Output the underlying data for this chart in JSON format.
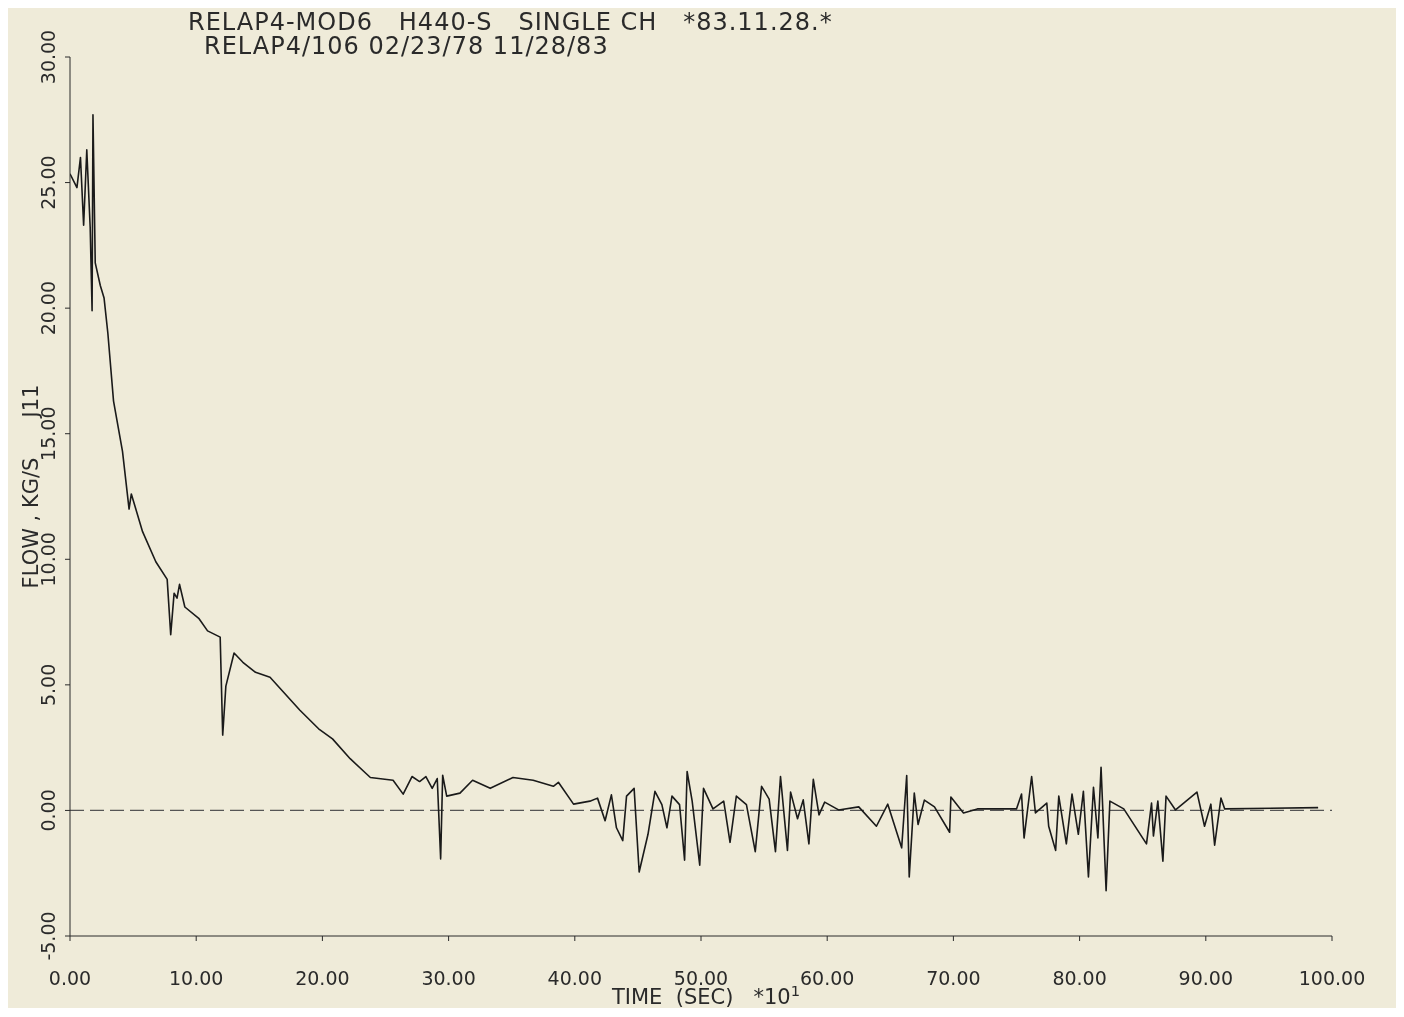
{
  "chart_data": {
    "type": "line",
    "title": "RELAP4-MOD6   H440-S   SINGLE CH   *83.11.28.*",
    "subtitle": "RELAP4/106 02/23/78 11/28/83",
    "xlabel": "TIME  (SEC)   *10$^{1}$",
    "ylabel": "FLOW , KG/S      J11",
    "xlim": [
      0,
      100
    ],
    "ylim": [
      -5,
      30
    ],
    "xticks": [
      {
        "value": 0,
        "label": "0.00"
      },
      {
        "value": 10,
        "label": "10.00"
      },
      {
        "value": 20,
        "label": "20.00"
      },
      {
        "value": 30,
        "label": "30.00"
      },
      {
        "value": 40,
        "label": "40.00"
      },
      {
        "value": 50,
        "label": "50.00"
      },
      {
        "value": 60,
        "label": "60.00"
      },
      {
        "value": 70,
        "label": "70.00"
      },
      {
        "value": 80,
        "label": "80.00"
      },
      {
        "value": 90,
        "label": "90.00"
      },
      {
        "value": 100,
        "label": "100.00"
      }
    ],
    "yticks": [
      {
        "value": -5,
        "label": "-5.00"
      },
      {
        "value": 0,
        "label": "0.00"
      },
      {
        "value": 5,
        "label": "5.00"
      },
      {
        "value": 10,
        "label": "10.00"
      },
      {
        "value": 15,
        "label": "15.00"
      },
      {
        "value": 20,
        "label": "20.00"
      },
      {
        "value": 25,
        "label": "25.00"
      },
      {
        "value": 30,
        "label": "30.00"
      }
    ],
    "ref_lines": [
      {
        "axis": "y",
        "value": 0,
        "color": "#555555",
        "line_style": "dashed"
      }
    ],
    "series": [
      {
        "color": "#1a1a1a",
        "x": [
          0,
          0.55,
          0.83,
          1.08,
          1.33,
          1.6,
          1.75,
          1.82,
          2.0,
          2.4,
          2.7,
          3.0,
          3.45,
          4.16,
          4.68,
          4.86,
          5.75,
          6.8,
          7.7,
          7.98,
          8.25,
          8.48,
          8.68,
          9.1,
          10.2,
          10.9,
          11.9,
          12.1,
          12.35,
          13.0,
          13.7,
          14.7,
          15.85,
          18.2,
          19.7,
          20.8,
          22.2,
          23.8,
          25.6,
          26.4,
          27.1,
          27.7,
          28.2,
          28.7,
          29.1,
          29.37,
          29.53,
          29.85,
          30.9,
          31.9,
          33.3,
          35.1,
          36.7,
          38.3,
          38.7,
          39.9,
          41.2,
          41.8,
          42.4,
          42.9,
          43.3,
          43.8,
          44.1,
          44.7,
          45.1,
          45.8,
          46.35,
          46.9,
          47.3,
          47.7,
          48.3,
          48.7,
          48.9,
          49.3,
          49.9,
          50.2,
          50.95,
          51.8,
          52.3,
          52.8,
          53.6,
          54.3,
          54.8,
          55.4,
          55.9,
          56.3,
          56.85,
          57.1,
          57.65,
          58.1,
          58.55,
          58.9,
          59.35,
          59.8,
          60.9,
          62.5,
          63.9,
          64.8,
          65.9,
          66.3,
          66.5,
          66.9,
          67.2,
          67.7,
          68.5,
          69.7,
          69.8,
          70.8,
          71.9,
          75.0,
          75.4,
          75.6,
          76.2,
          76.5,
          77.4,
          77.55,
          78.1,
          78.35,
          78.95,
          79.4,
          79.9,
          80.3,
          80.7,
          81.1,
          81.45,
          81.7,
          82.1,
          82.4,
          83.5,
          85.3,
          85.7,
          85.85,
          86.2,
          86.6,
          86.85,
          87.6,
          89.3,
          89.9,
          90.4,
          90.7,
          91.2,
          91.5,
          98.9
        ],
        "values": [
          25.35,
          24.8,
          26.0,
          23.3,
          26.3,
          23.2,
          19.9,
          27.7,
          21.8,
          20.9,
          20.4,
          19.0,
          16.3,
          14.3,
          12.0,
          12.6,
          11.1,
          9.9,
          9.2,
          7.0,
          8.65,
          8.45,
          9.0,
          8.1,
          7.65,
          7.15,
          6.9,
          3.0,
          4.95,
          6.27,
          5.9,
          5.5,
          5.3,
          4.0,
          3.25,
          2.85,
          2.06,
          1.31,
          1.2,
          0.65,
          1.35,
          1.15,
          1.35,
          0.88,
          1.27,
          -1.93,
          1.4,
          0.57,
          0.69,
          1.2,
          0.88,
          1.31,
          1.2,
          0.96,
          1.12,
          0.25,
          0.37,
          0.49,
          -0.41,
          0.62,
          -0.69,
          -1.2,
          0.57,
          0.88,
          -2.45,
          -0.95,
          0.76,
          0.23,
          -0.69,
          0.57,
          0.23,
          -1.98,
          1.55,
          0.37,
          -2.18,
          0.88,
          0.06,
          0.37,
          -1.27,
          0.57,
          0.23,
          -1.64,
          0.96,
          0.45,
          -1.64,
          1.35,
          -1.59,
          0.73,
          -0.33,
          0.42,
          -1.33,
          1.24,
          -0.18,
          0.33,
          0.02,
          0.14,
          -0.63,
          0.25,
          -1.49,
          1.39,
          -2.65,
          0.69,
          -0.56,
          0.41,
          0.14,
          -0.87,
          0.53,
          -0.1,
          0.06,
          0.06,
          0.65,
          -1.1,
          1.35,
          -0.1,
          0.29,
          -0.63,
          -1.59,
          0.57,
          -1.33,
          0.65,
          -0.95,
          0.76,
          -2.65,
          0.92,
          -1.1,
          1.72,
          -3.2,
          0.37,
          0.06,
          -1.33,
          0.29,
          -1.02,
          0.37,
          -2.02,
          0.57,
          0.02,
          0.73,
          -0.63,
          0.25,
          -1.38,
          0.49,
          0.06,
          0.11
        ]
      }
    ]
  }
}
